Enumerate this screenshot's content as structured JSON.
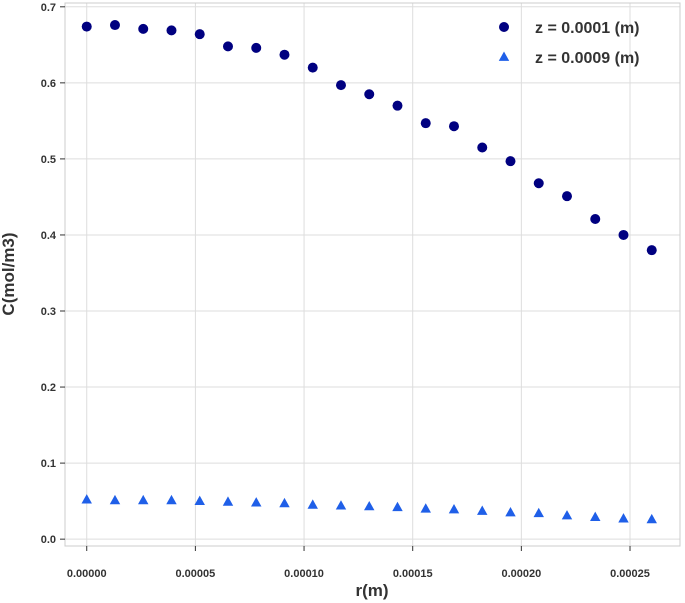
{
  "chart_data": {
    "type": "scatter",
    "xlabel": "r(m)",
    "ylabel": "C(mol/m3)",
    "xlim": [
      -1e-05,
      0.000273
    ],
    "ylim": [
      -0.009,
      0.705
    ],
    "grid": true,
    "legend_position": "top-right",
    "x_ticks": [
      0.0,
      5e-05,
      0.0001,
      0.00015,
      0.0002,
      0.00025
    ],
    "x_tick_labels": [
      "0.00000",
      "0.00005",
      "0.00010",
      "0.00015",
      "0.00020",
      "0.00025"
    ],
    "y_ticks": [
      0.0,
      0.1,
      0.2,
      0.3,
      0.4,
      0.5,
      0.6,
      0.7
    ],
    "y_tick_labels": [
      "0.0",
      "0.1",
      "0.2",
      "0.3",
      "0.4",
      "0.5",
      "0.6",
      "0.7"
    ],
    "x": [
      0.0,
      1.3e-05,
      2.6e-05,
      3.9e-05,
      5.2e-05,
      6.5e-05,
      7.8e-05,
      9.1e-05,
      0.000104,
      0.000117,
      0.00013,
      0.000143,
      0.000156,
      0.000169,
      0.000182,
      0.000195,
      0.000208,
      0.000221,
      0.000234,
      0.000247,
      0.00026
    ],
    "series": [
      {
        "name": "z = 0.0001 (m)",
        "marker": "circle",
        "color": "#000080",
        "values": [
          0.674,
          0.676,
          0.671,
          0.669,
          0.664,
          0.648,
          0.646,
          0.637,
          0.62,
          0.597,
          0.585,
          0.57,
          0.547,
          0.543,
          0.515,
          0.497,
          0.468,
          0.451,
          0.421,
          0.4,
          0.38
        ]
      },
      {
        "name": "z = 0.0009 (m)",
        "marker": "triangle",
        "color": "#1f5fe8",
        "values": [
          0.052,
          0.051,
          0.051,
          0.051,
          0.05,
          0.049,
          0.048,
          0.047,
          0.045,
          0.044,
          0.043,
          0.042,
          0.04,
          0.039,
          0.037,
          0.035,
          0.034,
          0.031,
          0.029,
          0.027,
          0.026
        ]
      }
    ]
  }
}
